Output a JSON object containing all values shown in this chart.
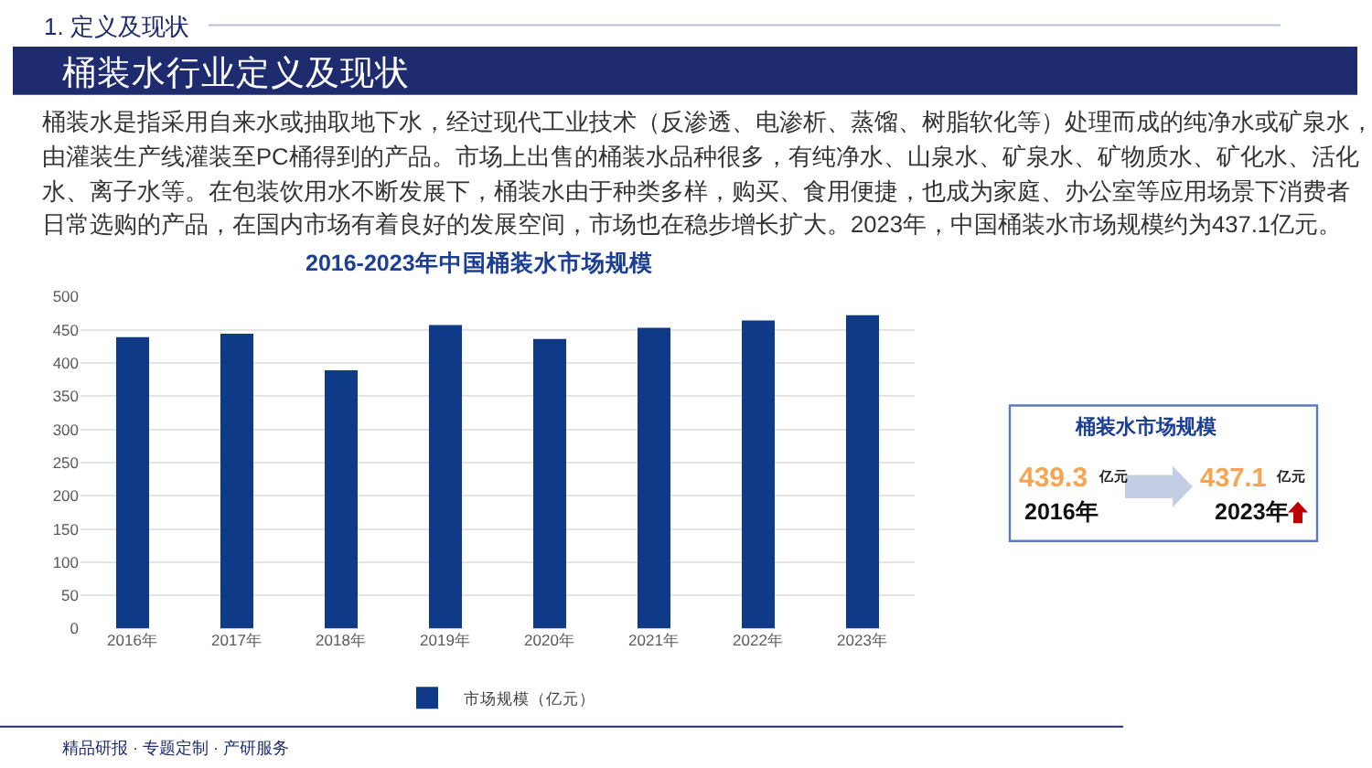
{
  "chart_data": [
    {
      "type": "other",
      "title": "桶装水行业定义及现状",
      "annotations": [
        "1. 定义及现状",
        "桶装水是指采用自来水或抽取地下水，经过现代工业技术（反渗透、电渗析、蒸馏、树脂软化等）处理而成的纯净水或矿泉水，由灌装生产线灌装至PC桶得到的产品。市场上出售的桶装水品种很多，有纯净水、山泉水、矿泉水、矿物质水、矿化水、活化水、离子水等。在包装饮用水不断发展下，桶装水由于种类多样，购买、食用便捷，也成为家庭、办公室等应用场景下消费者日常选购的产品，在国内市场有着良好的发展空间，市场也在稳步增长扩大。2023年，中国桶装水市场规模约为437.1亿元。",
        "精品研报 · 专题定制 · 产研服务"
      ]
    },
    {
      "type": "bar",
      "title": "2016-2023年中国桶装水市场规模",
      "categories": [
        "2016年",
        "2017年",
        "2018年",
        "2019年",
        "2020年",
        "2021年",
        "2022年",
        "2023年"
      ],
      "series": [
        {
          "name": "市场规模（亿元）",
          "color": "#0f3a87",
          "values": [
            439,
            444,
            389,
            457,
            436,
            453,
            464,
            472
          ]
        }
      ],
      "ylim": [
        0,
        500
      ],
      "yticks": [
        0,
        50,
        100,
        150,
        200,
        250,
        300,
        350,
        400,
        450,
        500
      ],
      "grid": "y",
      "legend": "bottom"
    },
    {
      "type": "other",
      "title": "桶装水市场规模",
      "annotations": [
        "439.3",
        "亿元",
        "2016年",
        "437.1",
        "亿元",
        "2023年"
      ]
    }
  ]
}
